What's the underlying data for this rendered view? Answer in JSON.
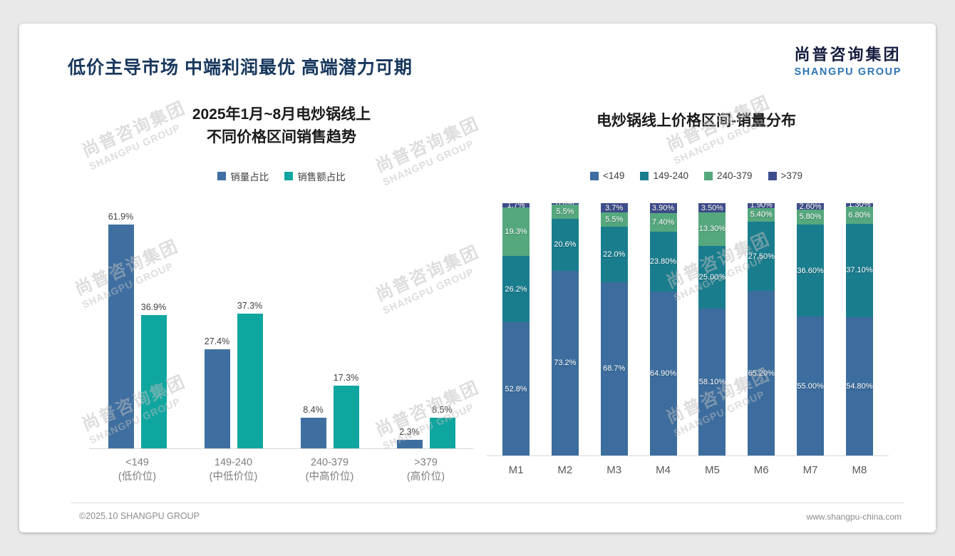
{
  "header": {
    "title": "低价主导市场 中端利润最优 高端潜力可期",
    "logo_cn": "尚普咨询集团",
    "logo_en": "SHANGPU GROUP"
  },
  "watermark": {
    "cn": "尚普咨询集团",
    "en": "SHANGPU GROUP"
  },
  "footer": {
    "left": "©2025.10 SHANGPU GROUP",
    "right": "www.shangpu-china.com"
  },
  "chart_data": [
    {
      "type": "bar",
      "title": "2025年1月~8月电炒锅线上\n不同价格区间销售趋势",
      "title_lines": [
        "2025年1月~8月电炒锅线上",
        "不同价格区间销售趋势"
      ],
      "categories": [
        "<149",
        "149-240",
        "240-379",
        ">379"
      ],
      "category_sublabels": [
        "(低价位)",
        "(中低价位)",
        "(中高价位)",
        "(高价位)"
      ],
      "series": [
        {
          "name": "销量占比",
          "color": "#3F6FA0",
          "values": [
            61.9,
            27.4,
            8.4,
            2.3
          ],
          "labels": [
            "61.9%",
            "27.4%",
            "8.4%",
            "2.3%"
          ]
        },
        {
          "name": "销售额占比",
          "color": "#10A6A0",
          "values": [
            36.9,
            37.3,
            17.3,
            8.5
          ],
          "labels": [
            "36.9%",
            "37.3%",
            "17.3%",
            "8.5%"
          ]
        }
      ],
      "ylim": [
        0,
        70
      ],
      "grid": false,
      "legend_position": "top",
      "value_suffix": "%"
    },
    {
      "type": "stacked-bar",
      "title": "电炒锅线上价格区间-销量分布",
      "categories": [
        "M1",
        "M2",
        "M3",
        "M4",
        "M5",
        "M6",
        "M7",
        "M8"
      ],
      "series": [
        {
          "name": "<149",
          "color": "#3C6D9E",
          "values": [
            52.8,
            73.2,
            68.7,
            64.9,
            58.1,
            65.2,
            55.0,
            54.8
          ],
          "labels": [
            "52.8%",
            "73.2%",
            "68.7%",
            "64.90%",
            "58.10%",
            "65.20%",
            "55.00%",
            "54.80%"
          ]
        },
        {
          "name": "149-240",
          "color": "#1A7D8E",
          "values": [
            26.2,
            20.6,
            22.0,
            23.8,
            25.0,
            27.5,
            36.6,
            37.1
          ],
          "labels": [
            "26.2%",
            "20.6%",
            "22.0%",
            "23.80%",
            "25.00%",
            "27.50%",
            "36.60%",
            "37.10%"
          ]
        },
        {
          "name": "240-379",
          "color": "#55A87E",
          "values": [
            19.3,
            5.5,
            5.5,
            7.4,
            13.3,
            5.4,
            5.8,
            6.8
          ],
          "labels": [
            "19.3%",
            "5.5%",
            "5.5%",
            "7.40%",
            "13.30%",
            "5.40%",
            "5.80%",
            "6.80%"
          ]
        },
        {
          "name": ">379",
          "color": "#3E4D8B",
          "values": [
            1.7,
            0.8,
            3.7,
            3.9,
            3.5,
            1.9,
            2.6,
            1.3
          ],
          "labels": [
            "1.7%",
            "0.8%",
            "3.7%",
            "3.90%",
            "3.50%",
            "1.90%",
            "2.60%",
            "1.30%"
          ]
        }
      ],
      "ylim": [
        0,
        100
      ],
      "grid": false,
      "legend_position": "top"
    }
  ]
}
